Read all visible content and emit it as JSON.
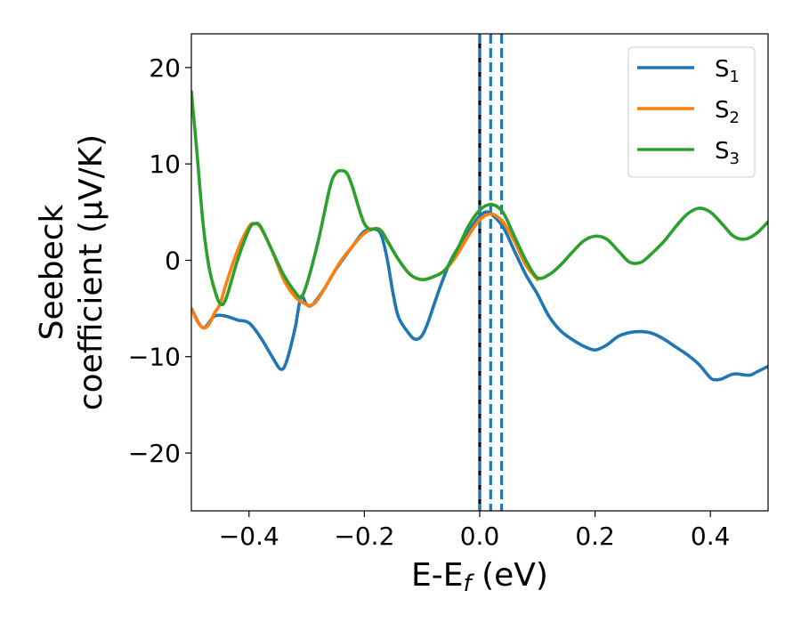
{
  "chart_data": {
    "type": "line",
    "xlabel": "E-E_f (eV)",
    "ylabel_line1": "Seebeck",
    "ylabel_line2": "coefficient  (μV/K)",
    "xlim": [
      -0.5,
      0.5
    ],
    "ylim": [
      -26,
      23.5
    ],
    "xticks": [
      -0.4,
      -0.2,
      0.0,
      0.2,
      0.4
    ],
    "xtick_labels": [
      "−0.4",
      "−0.2",
      "0.0",
      "0.2",
      "0.4"
    ],
    "yticks": [
      -20,
      -10,
      0,
      10,
      20
    ],
    "ytick_labels": [
      "−20",
      "−10",
      "0",
      "10",
      "20"
    ],
    "grid": false,
    "legend_position": "top-right",
    "series": [
      {
        "name": "S1",
        "color": "#1f77b4",
        "points": [
          [
            -0.5,
            -5.0
          ],
          [
            -0.48,
            -7.0
          ],
          [
            -0.46,
            -5.8
          ],
          [
            -0.44,
            -5.8
          ],
          [
            -0.42,
            -6.2
          ],
          [
            -0.4,
            -6.5
          ],
          [
            -0.38,
            -8.0
          ],
          [
            -0.36,
            -10.0
          ],
          [
            -0.345,
            -11.3
          ],
          [
            -0.335,
            -10.5
          ],
          [
            -0.32,
            -7.0
          ],
          [
            -0.31,
            -3.8
          ],
          [
            -0.3,
            -4.6
          ],
          [
            -0.29,
            -4.6
          ],
          [
            -0.27,
            -3.0
          ],
          [
            -0.25,
            -1.0
          ],
          [
            -0.22,
            1.5
          ],
          [
            -0.2,
            3.0
          ],
          [
            -0.18,
            3.2
          ],
          [
            -0.17,
            2.5
          ],
          [
            -0.16,
            0.0
          ],
          [
            -0.15,
            -3.5
          ],
          [
            -0.14,
            -6.0
          ],
          [
            -0.12,
            -7.8
          ],
          [
            -0.11,
            -8.2
          ],
          [
            -0.1,
            -7.8
          ],
          [
            -0.09,
            -6.5
          ],
          [
            -0.07,
            -3.0
          ],
          [
            -0.05,
            0.0
          ],
          [
            -0.03,
            2.0
          ],
          [
            -0.01,
            3.8
          ],
          [
            0.0,
            4.6
          ],
          [
            0.01,
            5.0
          ],
          [
            0.02,
            4.8
          ],
          [
            0.04,
            3.5
          ],
          [
            0.06,
            1.0
          ],
          [
            0.08,
            -1.5
          ],
          [
            0.1,
            -3.5
          ],
          [
            0.12,
            -5.8
          ],
          [
            0.14,
            -7.3
          ],
          [
            0.16,
            -8.2
          ],
          [
            0.18,
            -8.9
          ],
          [
            0.2,
            -9.3
          ],
          [
            0.22,
            -8.8
          ],
          [
            0.24,
            -7.9
          ],
          [
            0.26,
            -7.5
          ],
          [
            0.28,
            -7.4
          ],
          [
            0.3,
            -7.6
          ],
          [
            0.32,
            -8.2
          ],
          [
            0.34,
            -9.0
          ],
          [
            0.36,
            -9.8
          ],
          [
            0.38,
            -10.8
          ],
          [
            0.4,
            -12.2
          ],
          [
            0.41,
            -12.4
          ],
          [
            0.42,
            -12.3
          ],
          [
            0.44,
            -11.8
          ],
          [
            0.46,
            -11.9
          ],
          [
            0.47,
            -11.9
          ],
          [
            0.48,
            -11.6
          ],
          [
            0.5,
            -11.0
          ]
        ]
      },
      {
        "name": "S2",
        "color": "#ff7f0e",
        "points": [
          [
            -0.5,
            -5.0
          ],
          [
            -0.49,
            -6.3
          ],
          [
            -0.48,
            -7.0
          ],
          [
            -0.47,
            -6.7
          ],
          [
            -0.46,
            -5.5
          ],
          [
            -0.45,
            -4.5
          ],
          [
            -0.44,
            -2.5
          ],
          [
            -0.42,
            1.0
          ],
          [
            -0.4,
            3.5
          ],
          [
            -0.39,
            3.8
          ],
          [
            -0.38,
            3.4
          ],
          [
            -0.36,
            1.0
          ],
          [
            -0.34,
            -2.0
          ],
          [
            -0.32,
            -3.8
          ],
          [
            -0.3,
            -4.6
          ],
          [
            -0.29,
            -4.6
          ],
          [
            -0.28,
            -4.0
          ],
          [
            -0.26,
            -2.0
          ],
          [
            -0.24,
            0.0
          ],
          [
            -0.22,
            1.5
          ],
          [
            -0.2,
            2.8
          ],
          [
            -0.18,
            3.3
          ],
          [
            -0.17,
            3.0
          ],
          [
            -0.16,
            2.0
          ],
          [
            -0.14,
            0.0
          ],
          [
            -0.12,
            -1.5
          ],
          [
            -0.1,
            -2.0
          ],
          [
            -0.08,
            -1.7
          ],
          [
            -0.06,
            -1.0
          ],
          [
            -0.04,
            0.5
          ],
          [
            -0.02,
            2.5
          ],
          [
            0.0,
            4.2
          ],
          [
            0.02,
            4.8
          ],
          [
            0.04,
            4.0
          ],
          [
            0.06,
            2.0
          ],
          [
            0.08,
            -0.5
          ],
          [
            0.1,
            -2.0
          ]
        ]
      },
      {
        "name": "S3",
        "color": "#2ca02c",
        "points": [
          [
            -0.5,
            17.5
          ],
          [
            -0.49,
            11.0
          ],
          [
            -0.48,
            4.0
          ],
          [
            -0.47,
            -0.5
          ],
          [
            -0.46,
            -3.0
          ],
          [
            -0.45,
            -4.5
          ],
          [
            -0.44,
            -4.0
          ],
          [
            -0.42,
            0.0
          ],
          [
            -0.4,
            3.2
          ],
          [
            -0.39,
            3.8
          ],
          [
            -0.38,
            3.5
          ],
          [
            -0.36,
            1.0
          ],
          [
            -0.34,
            -1.5
          ],
          [
            -0.32,
            -3.3
          ],
          [
            -0.31,
            -3.8
          ],
          [
            -0.3,
            -2.5
          ],
          [
            -0.28,
            2.0
          ],
          [
            -0.26,
            7.5
          ],
          [
            -0.25,
            9.0
          ],
          [
            -0.24,
            9.3
          ],
          [
            -0.23,
            9.0
          ],
          [
            -0.22,
            7.5
          ],
          [
            -0.21,
            5.5
          ],
          [
            -0.2,
            3.8
          ],
          [
            -0.19,
            3.2
          ],
          [
            -0.18,
            3.3
          ],
          [
            -0.17,
            3.0
          ],
          [
            -0.16,
            2.0
          ],
          [
            -0.14,
            0.0
          ],
          [
            -0.12,
            -1.5
          ],
          [
            -0.1,
            -2.0
          ],
          [
            -0.08,
            -1.7
          ],
          [
            -0.06,
            -1.0
          ],
          [
            -0.04,
            1.0
          ],
          [
            -0.02,
            3.5
          ],
          [
            0.0,
            5.2
          ],
          [
            0.02,
            5.8
          ],
          [
            0.04,
            5.0
          ],
          [
            0.06,
            2.5
          ],
          [
            0.08,
            0.0
          ],
          [
            0.1,
            -1.8
          ],
          [
            0.12,
            -1.5
          ],
          [
            0.14,
            -0.5
          ],
          [
            0.16,
            0.8
          ],
          [
            0.18,
            2.0
          ],
          [
            0.2,
            2.5
          ],
          [
            0.22,
            2.2
          ],
          [
            0.24,
            1.0
          ],
          [
            0.26,
            -0.2
          ],
          [
            0.28,
            -0.2
          ],
          [
            0.3,
            0.8
          ],
          [
            0.32,
            2.0
          ],
          [
            0.34,
            3.5
          ],
          [
            0.36,
            4.8
          ],
          [
            0.38,
            5.4
          ],
          [
            0.4,
            5.0
          ],
          [
            0.42,
            3.8
          ],
          [
            0.44,
            2.5
          ],
          [
            0.46,
            2.2
          ],
          [
            0.48,
            2.8
          ],
          [
            0.5,
            4.0
          ]
        ]
      }
    ],
    "vlines": [
      {
        "x": 0.0,
        "color": "#000000",
        "style": "solid"
      },
      {
        "x": 0.0,
        "color": "#1f77b4",
        "style": "dashed"
      },
      {
        "x": 0.019,
        "color": "#1f77b4",
        "style": "dashed"
      },
      {
        "x": 0.038,
        "color": "#1f77b4",
        "style": "dashed"
      }
    ]
  }
}
